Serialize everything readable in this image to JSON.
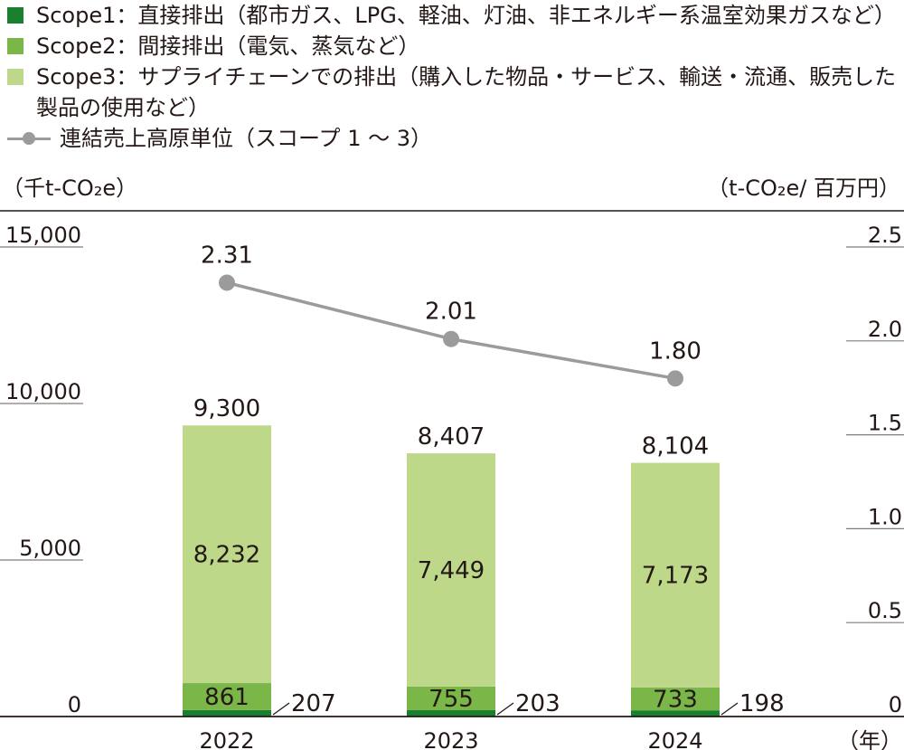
{
  "legend": {
    "scope1": "Scope1：直接排出（都市ガス、LPG、軽油、灯油、非エネルギー系温室効果ガスなど）",
    "scope2": "Scope2：間接排出（電気、蒸気など）",
    "scope3": "Scope3：サプライチェーンでの排出（購入した物品・サービス、輸送・流通、販売した製品の使用など）",
    "intensity": "連結売上高原単位（スコープ 1 ～ 3）"
  },
  "units": {
    "left": "（千t-CO₂e）",
    "right": "（t-CO₂e/ 百万円）",
    "x": "（年）"
  },
  "colors": {
    "scope1": "#1a7f2e",
    "scope2": "#7ab648",
    "scope3": "#bdd889",
    "line": "#9b9b9b",
    "axis": "#231815"
  },
  "chart_data": {
    "type": "bar",
    "categories": [
      "2022",
      "2023",
      "2024"
    ],
    "series": [
      {
        "name": "Scope1",
        "values": [
          207,
          203,
          198
        ]
      },
      {
        "name": "Scope2",
        "values": [
          861,
          755,
          733
        ]
      },
      {
        "name": "Scope3",
        "values": [
          8232,
          7449,
          7173
        ]
      }
    ],
    "totals": [
      9300,
      8407,
      8104
    ],
    "total_labels": [
      "9,300",
      "8,407",
      "8,104"
    ],
    "value_labels": {
      "Scope1": [
        "207",
        "203",
        "198"
      ],
      "Scope2": [
        "861",
        "755",
        "733"
      ],
      "Scope3": [
        "8,232",
        "7,449",
        "7,173"
      ]
    },
    "left_axis": {
      "ylim": [
        0,
        15000
      ],
      "ticks": [
        0,
        5000,
        10000,
        15000
      ],
      "tick_labels": [
        "0",
        "5,000",
        "10,000",
        "15,000"
      ]
    },
    "right_axis": {
      "ylim": [
        0,
        2.5
      ],
      "ticks": [
        0,
        0.5,
        1.0,
        1.5,
        2.0,
        2.5
      ],
      "tick_labels": [
        "0",
        "0.5",
        "1.0",
        "1.5",
        "2.0",
        "2.5"
      ]
    },
    "line_series": {
      "name": "連結売上高原単位（スコープ 1 ～ 3）",
      "values": [
        2.31,
        2.01,
        1.8
      ],
      "labels": [
        "2.31",
        "2.01",
        "1.80"
      ],
      "axis": "right"
    }
  }
}
